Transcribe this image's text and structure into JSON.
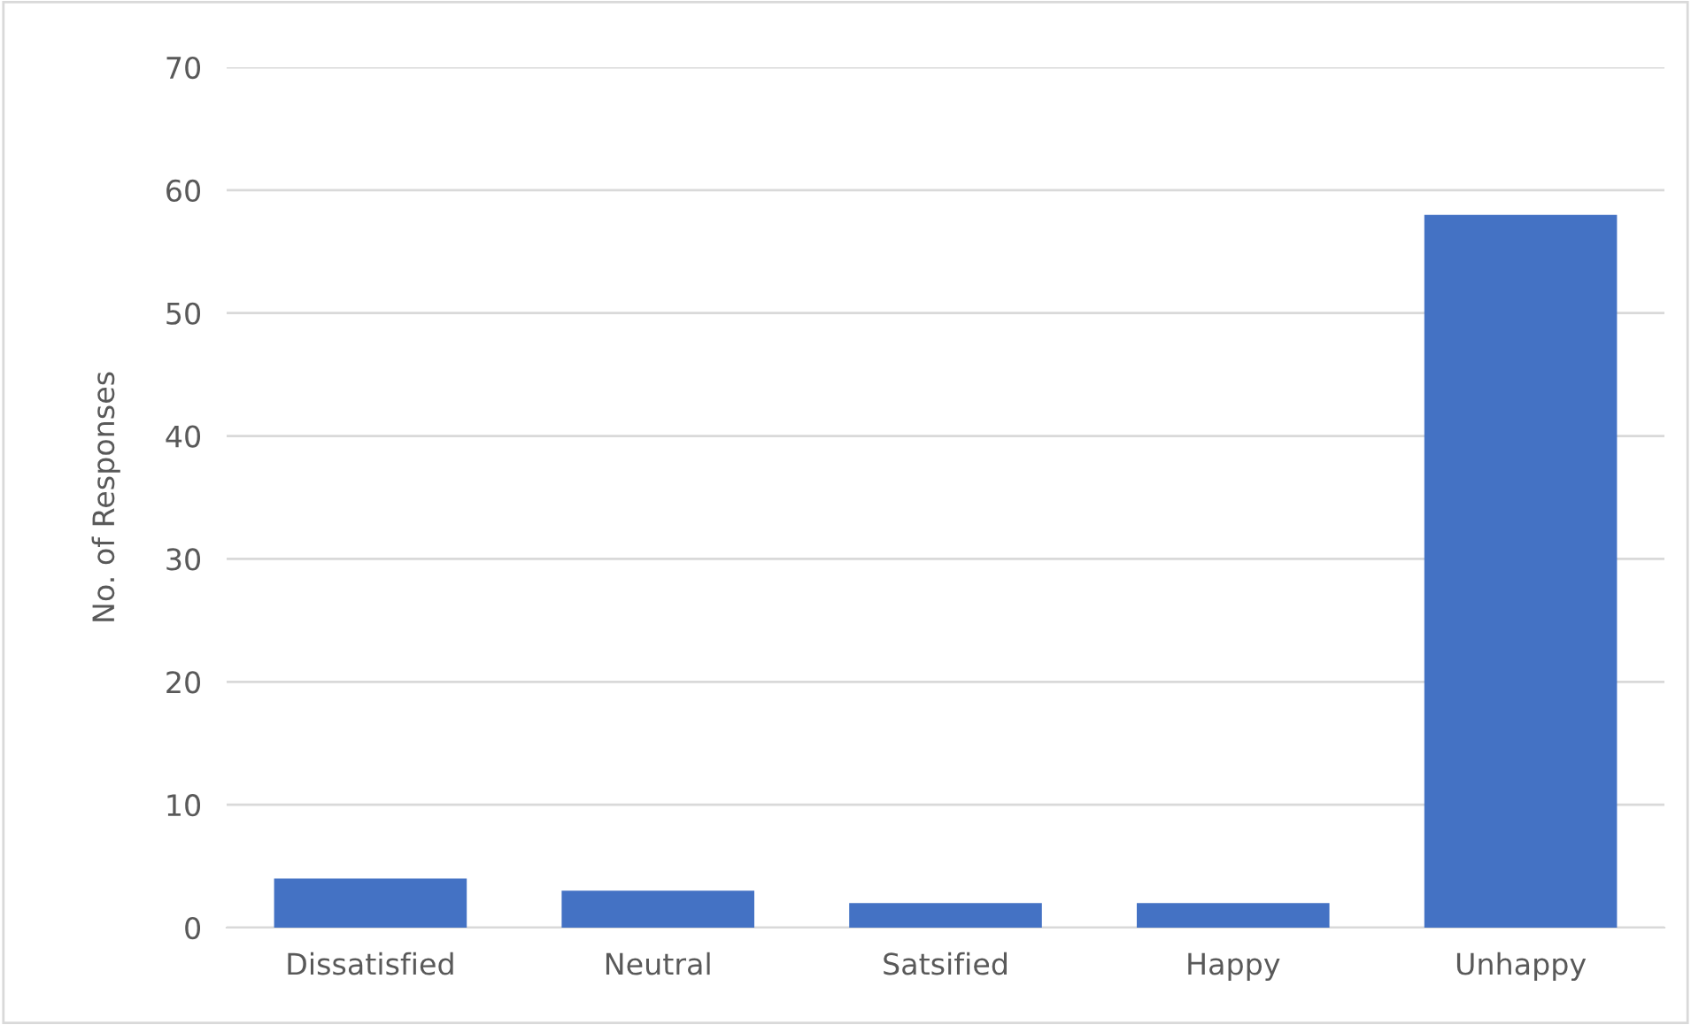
{
  "chart_data": {
    "type": "bar",
    "ylabel": "No. of Responses",
    "categories": [
      "Dissatisfied",
      "Neutral",
      "Satsified",
      "Happy",
      "Unhappy"
    ],
    "values": [
      4,
      3,
      2,
      2,
      58
    ],
    "color": "#4472c4",
    "ylim": [
      0,
      70
    ],
    "yticks": [
      0,
      10,
      20,
      30,
      40,
      50,
      60,
      70
    ],
    "grid": "y"
  }
}
